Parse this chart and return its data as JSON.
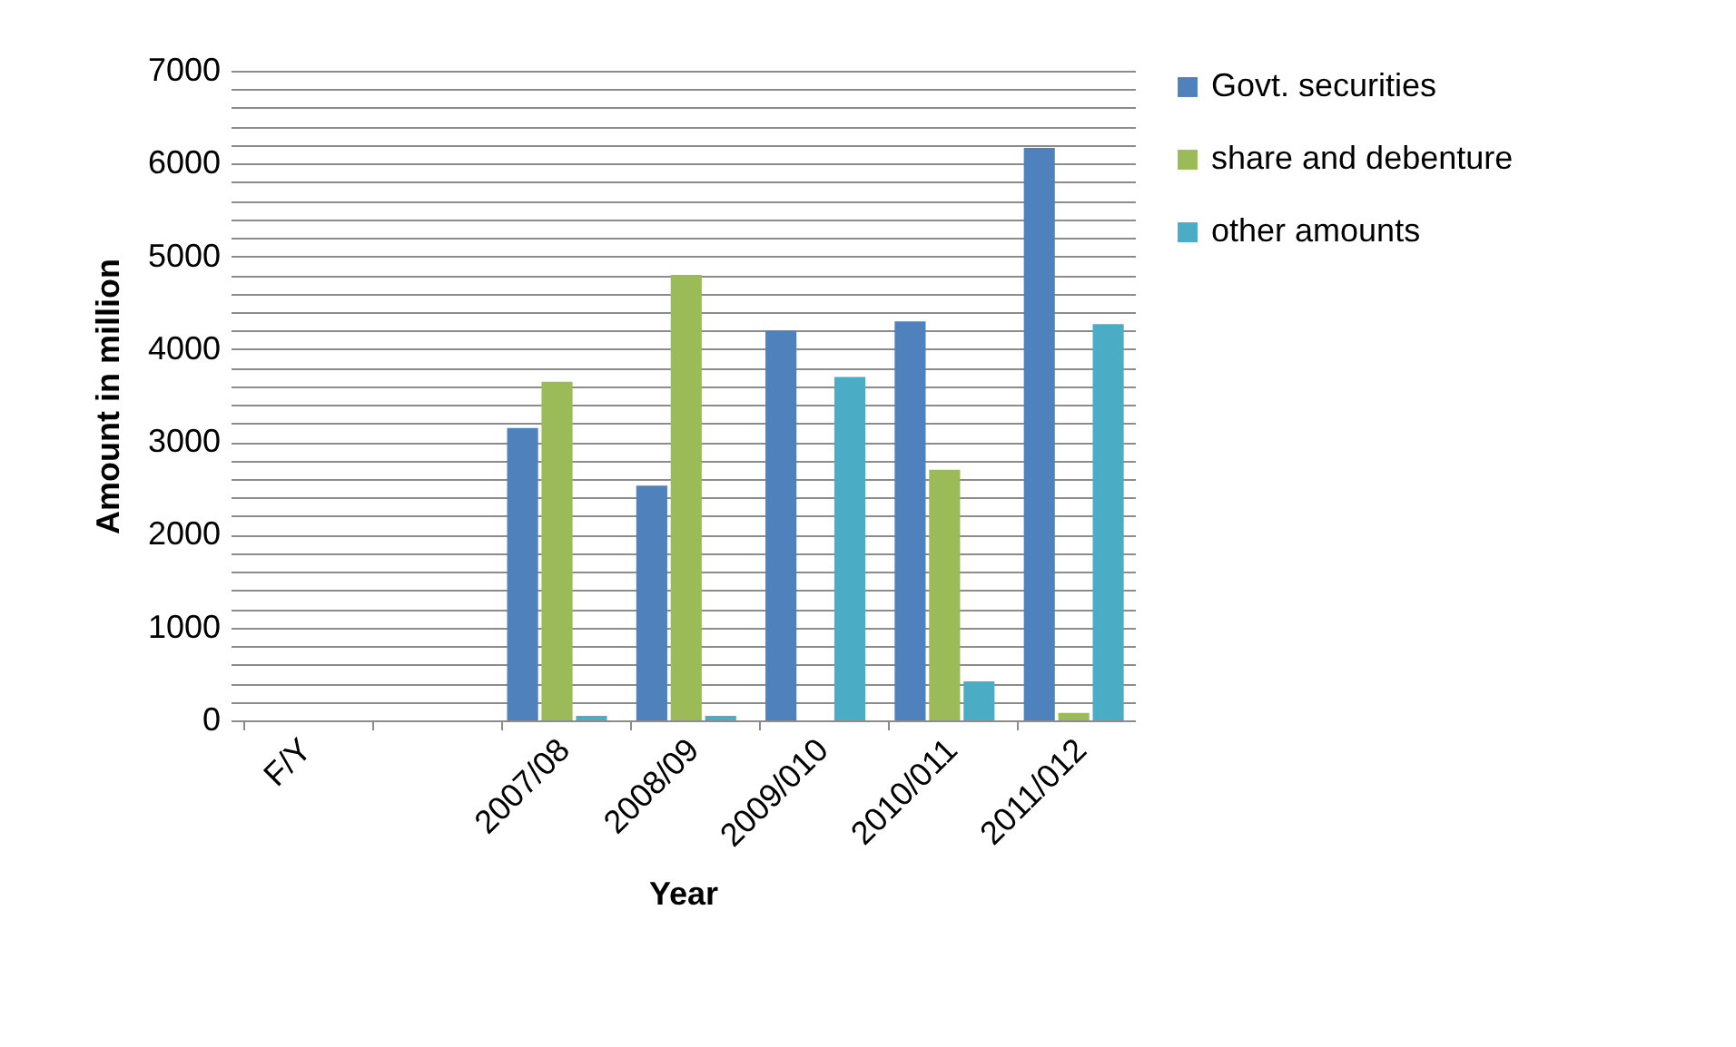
{
  "chart_data": {
    "type": "bar",
    "xlabel": "Year",
    "ylabel": "Amount in million",
    "categories": [
      "F/Y",
      null,
      "2007/08",
      "2008/09",
      "2009/010",
      "2010/011",
      "2011/012"
    ],
    "series": [
      {
        "name": "Govt. securities",
        "color": "#4f81bd",
        "values": [
          null,
          null,
          3150,
          2530,
          4200,
          4300,
          6170
        ]
      },
      {
        "name": "share and debenture",
        "color": "#9bbb59",
        "values": [
          null,
          null,
          3650,
          4800,
          0,
          2700,
          80
        ]
      },
      {
        "name": "other amounts",
        "color": "#4bacc6",
        "values": [
          null,
          null,
          50,
          50,
          3700,
          420,
          4270
        ]
      }
    ],
    "ylim": [
      0,
      7000
    ],
    "yticks": [
      0,
      {
        "value": 200,
        "label": null
      },
      {
        "value": 400,
        "label": null
      },
      {
        "value": 600,
        "label": null
      },
      {
        "value": 800,
        "label": null
      },
      1000,
      {
        "value": 1200,
        "label": null
      },
      {
        "value": 1400,
        "label": null
      },
      {
        "value": 1600,
        "label": null
      },
      {
        "value": 1800,
        "label": null
      },
      2000,
      {
        "value": 2200,
        "label": null
      },
      {
        "value": 2400,
        "label": null
      },
      {
        "value": 2600,
        "label": null
      },
      {
        "value": 2800,
        "label": null
      },
      3000,
      {
        "value": 3200,
        "label": null
      },
      {
        "value": 3400,
        "label": null
      },
      {
        "value": 3600,
        "label": null
      },
      {
        "value": 3800,
        "label": null
      },
      4000,
      {
        "value": 4200,
        "label": null
      },
      {
        "value": 4400,
        "label": null
      },
      {
        "value": 4600,
        "label": null
      },
      {
        "value": 4800,
        "label": null
      },
      5000,
      {
        "value": 5200,
        "label": null
      },
      {
        "value": 5400,
        "label": null
      },
      {
        "value": 5600,
        "label": null
      },
      {
        "value": 5800,
        "label": null
      },
      6000,
      {
        "value": 6200,
        "label": null
      },
      {
        "value": 6400,
        "label": null
      },
      {
        "value": 6600,
        "label": null
      },
      {
        "value": 6800,
        "label": null
      },
      7000
    ],
    "grid": "y",
    "legend": "right"
  }
}
